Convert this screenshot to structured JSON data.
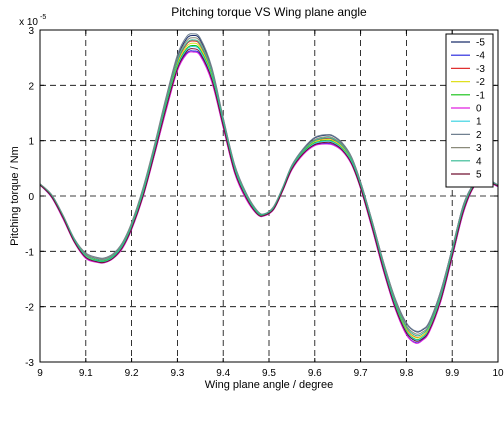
{
  "chart_data": {
    "type": "line",
    "title": "Pitching torque VS Wing plane angle",
    "xlabel": "Wing plane angle / degree",
    "ylabel": "Pitching torque / Nm",
    "y_exponent_label": "x 10",
    "y_exponent_power": "-5",
    "xlim": [
      9,
      10
    ],
    "ylim": [
      -3,
      3
    ],
    "xticks": [
      "9",
      "9.1",
      "9.2",
      "9.3",
      "9.4",
      "9.5",
      "9.6",
      "9.7",
      "9.8",
      "9.9",
      "10"
    ],
    "yticks": [
      "-3",
      "-2",
      "-1",
      "0",
      "1",
      "2",
      "3"
    ],
    "grid": true,
    "grid_style": "dashed",
    "legend_position": "top-right",
    "x": [
      9.0,
      9.025,
      9.05,
      9.075,
      9.1,
      9.125,
      9.14,
      9.16,
      9.18,
      9.2,
      9.225,
      9.25,
      9.275,
      9.3,
      9.32,
      9.335,
      9.35,
      9.375,
      9.4,
      9.425,
      9.45,
      9.475,
      9.49,
      9.51,
      9.53,
      9.55,
      9.575,
      9.6,
      9.625,
      9.64,
      9.66,
      9.68,
      9.7,
      9.725,
      9.75,
      9.775,
      9.8,
      9.82,
      9.835,
      9.85,
      9.875,
      9.9,
      9.925,
      9.95,
      9.975,
      10.0
    ],
    "series": [
      {
        "name": "-5",
        "color": "#1a2f6b",
        "values": [
          0.22,
          0.02,
          -0.35,
          -0.78,
          -1.05,
          -1.13,
          -1.14,
          -1.06,
          -0.86,
          -0.5,
          0.12,
          0.9,
          1.75,
          2.5,
          2.84,
          2.9,
          2.82,
          2.3,
          1.4,
          0.55,
          0.05,
          -0.28,
          -0.33,
          -0.2,
          0.15,
          0.55,
          0.85,
          1.05,
          1.1,
          1.08,
          0.95,
          0.7,
          0.25,
          -0.45,
          -1.2,
          -1.85,
          -2.3,
          -2.45,
          -2.42,
          -2.28,
          -1.72,
          -0.95,
          -0.15,
          0.24,
          0.3,
          0.2
        ]
      },
      {
        "name": "-4",
        "color": "#2020dd",
        "values": [
          0.2,
          -0.02,
          -0.4,
          -0.83,
          -1.12,
          -1.19,
          -1.2,
          -1.12,
          -0.94,
          -0.6,
          0.0,
          0.75,
          1.55,
          2.28,
          2.58,
          2.62,
          2.55,
          2.08,
          1.25,
          0.42,
          -0.05,
          -0.33,
          -0.35,
          -0.24,
          0.1,
          0.48,
          0.76,
          0.92,
          0.95,
          0.93,
          0.82,
          0.58,
          0.14,
          -0.58,
          -1.35,
          -2.02,
          -2.5,
          -2.65,
          -2.6,
          -2.45,
          -1.9,
          -1.1,
          -0.28,
          0.2,
          0.25,
          0.17
        ]
      },
      {
        "name": "-3",
        "color": "#e03030",
        "values": [
          0.21,
          0.01,
          -0.37,
          -0.8,
          -1.08,
          -1.16,
          -1.17,
          -1.09,
          -0.9,
          -0.55,
          0.06,
          0.83,
          1.66,
          2.42,
          2.74,
          2.8,
          2.72,
          2.22,
          1.34,
          0.5,
          0.01,
          -0.3,
          -0.34,
          -0.22,
          0.13,
          0.52,
          0.81,
          0.99,
          1.04,
          1.02,
          0.9,
          0.65,
          0.2,
          -0.51,
          -1.27,
          -1.93,
          -2.4,
          -2.55,
          -2.52,
          -2.37,
          -1.82,
          -1.03,
          -0.22,
          0.22,
          0.28,
          0.19
        ]
      },
      {
        "name": "-2",
        "color": "#e0e020",
        "values": [
          0.21,
          0.01,
          -0.37,
          -0.8,
          -1.09,
          -1.16,
          -1.17,
          -1.09,
          -0.9,
          -0.55,
          0.05,
          0.82,
          1.64,
          2.38,
          2.7,
          2.76,
          2.68,
          2.19,
          1.32,
          0.49,
          0.0,
          -0.31,
          -0.34,
          -0.22,
          0.12,
          0.52,
          0.8,
          0.98,
          1.02,
          1.0,
          0.88,
          0.64,
          0.19,
          -0.52,
          -1.28,
          -1.94,
          -2.41,
          -2.56,
          -2.52,
          -2.37,
          -1.82,
          -1.03,
          -0.22,
          0.22,
          0.28,
          0.19
        ]
      },
      {
        "name": "-1",
        "color": "#10c010",
        "values": [
          0.21,
          0.0,
          -0.38,
          -0.81,
          -1.1,
          -1.17,
          -1.18,
          -1.1,
          -0.91,
          -0.57,
          0.03,
          0.8,
          1.62,
          2.35,
          2.66,
          2.72,
          2.64,
          2.16,
          1.3,
          0.47,
          -0.01,
          -0.31,
          -0.34,
          -0.23,
          0.12,
          0.5,
          0.79,
          0.96,
          1.0,
          0.98,
          0.86,
          0.62,
          0.17,
          -0.54,
          -1.3,
          -1.96,
          -2.44,
          -2.59,
          -2.55,
          -2.4,
          -1.85,
          -1.06,
          -0.24,
          0.21,
          0.27,
          0.18
        ]
      },
      {
        "name": "0",
        "color": "#e020e0",
        "values": [
          0.2,
          -0.02,
          -0.41,
          -0.84,
          -1.13,
          -1.2,
          -1.21,
          -1.13,
          -0.95,
          -0.61,
          -0.02,
          0.74,
          1.53,
          2.26,
          2.56,
          2.6,
          2.53,
          2.06,
          1.23,
          0.41,
          -0.06,
          -0.34,
          -0.36,
          -0.25,
          0.09,
          0.47,
          0.75,
          0.91,
          0.94,
          0.92,
          0.81,
          0.57,
          0.13,
          -0.59,
          -1.36,
          -2.03,
          -2.51,
          -2.66,
          -2.61,
          -2.46,
          -1.91,
          -1.11,
          -0.29,
          0.19,
          0.25,
          0.17
        ]
      },
      {
        "name": "1",
        "color": "#30d0e0",
        "values": [
          0.21,
          0.0,
          -0.38,
          -0.82,
          -1.1,
          -1.18,
          -1.19,
          -1.11,
          -0.92,
          -0.58,
          0.02,
          0.79,
          1.6,
          2.33,
          2.64,
          2.7,
          2.62,
          2.14,
          1.29,
          0.46,
          -0.02,
          -0.32,
          -0.35,
          -0.23,
          0.11,
          0.5,
          0.78,
          0.95,
          0.99,
          0.97,
          0.85,
          0.61,
          0.16,
          -0.55,
          -1.31,
          -1.98,
          -2.45,
          -2.6,
          -2.56,
          -2.41,
          -1.86,
          -1.07,
          -0.25,
          0.21,
          0.27,
          0.18
        ]
      },
      {
        "name": "2",
        "color": "#708090",
        "values": [
          0.22,
          0.03,
          -0.34,
          -0.77,
          -1.03,
          -1.11,
          -1.12,
          -1.04,
          -0.84,
          -0.48,
          0.15,
          0.93,
          1.78,
          2.55,
          2.88,
          2.93,
          2.85,
          2.33,
          1.42,
          0.57,
          0.06,
          -0.27,
          -0.32,
          -0.19,
          0.16,
          0.56,
          0.86,
          1.06,
          1.11,
          1.09,
          0.96,
          0.71,
          0.26,
          -0.44,
          -1.19,
          -1.84,
          -2.29,
          -2.44,
          -2.41,
          -2.27,
          -1.71,
          -0.94,
          -0.14,
          0.24,
          0.3,
          0.2
        ]
      },
      {
        "name": "3",
        "color": "#8a8a7a",
        "values": [
          0.22,
          0.02,
          -0.35,
          -0.78,
          -1.05,
          -1.13,
          -1.14,
          -1.06,
          -0.86,
          -0.5,
          0.12,
          0.9,
          1.73,
          2.48,
          2.8,
          2.86,
          2.78,
          2.27,
          1.38,
          0.54,
          0.04,
          -0.28,
          -0.33,
          -0.2,
          0.14,
          0.54,
          0.83,
          1.02,
          1.07,
          1.05,
          0.93,
          0.68,
          0.23,
          -0.47,
          -1.22,
          -1.88,
          -2.34,
          -2.49,
          -2.46,
          -2.32,
          -1.76,
          -0.98,
          -0.18,
          0.23,
          0.29,
          0.19
        ]
      },
      {
        "name": "4",
        "color": "#30b890",
        "values": [
          0.21,
          0.01,
          -0.36,
          -0.79,
          -1.07,
          -1.15,
          -1.16,
          -1.08,
          -0.88,
          -0.53,
          0.09,
          0.86,
          1.69,
          2.44,
          2.76,
          2.82,
          2.74,
          2.24,
          1.36,
          0.52,
          0.02,
          -0.29,
          -0.33,
          -0.21,
          0.14,
          0.53,
          0.82,
          1.0,
          1.05,
          1.03,
          0.91,
          0.66,
          0.21,
          -0.49,
          -1.25,
          -1.91,
          -2.37,
          -2.52,
          -2.49,
          -2.34,
          -1.79,
          -1.0,
          -0.2,
          0.22,
          0.28,
          0.19
        ]
      },
      {
        "name": "5",
        "color": "#701030",
        "values": [
          0.2,
          -0.01,
          -0.39,
          -0.83,
          -1.11,
          -1.19,
          -1.2,
          -1.12,
          -0.93,
          -0.59,
          0.0,
          0.77,
          1.58,
          2.3,
          2.61,
          2.66,
          2.58,
          2.11,
          1.27,
          0.44,
          -0.03,
          -0.33,
          -0.35,
          -0.24,
          0.1,
          0.49,
          0.77,
          0.93,
          0.97,
          0.95,
          0.83,
          0.59,
          0.15,
          -0.56,
          -1.33,
          -2.0,
          -2.47,
          -2.62,
          -2.58,
          -2.43,
          -1.88,
          -1.08,
          -0.26,
          0.2,
          0.26,
          0.18
        ]
      }
    ]
  }
}
